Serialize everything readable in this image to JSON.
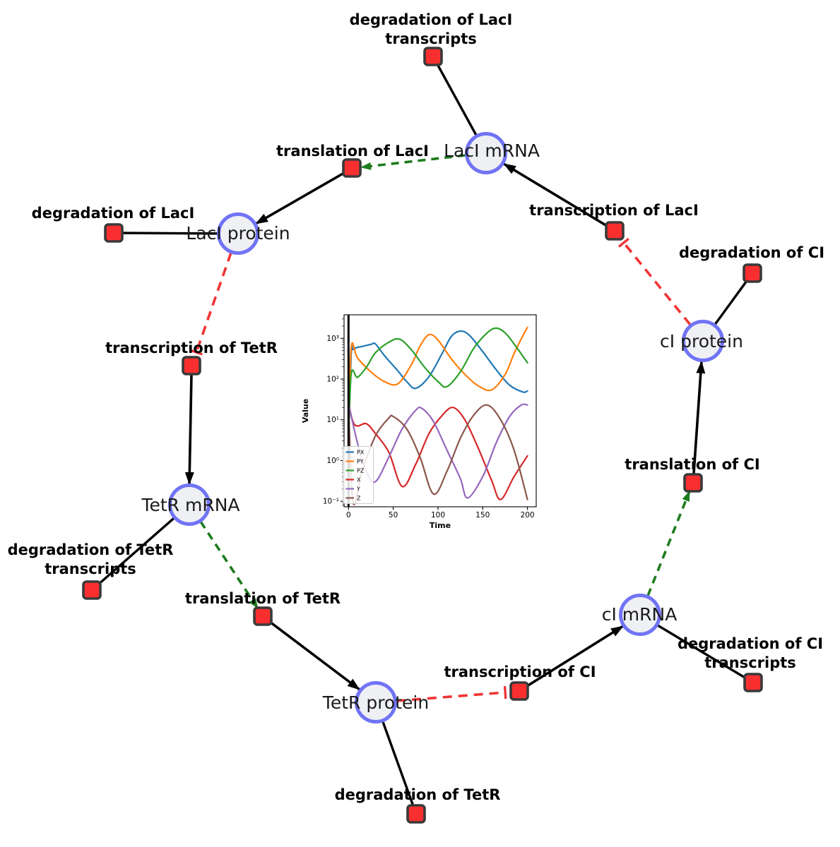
{
  "diagram": {
    "species": [
      {
        "label": "LacI mRNA"
      },
      {
        "label": "LacI protein"
      },
      {
        "label": "TetR mRNA"
      },
      {
        "label": "TetR protein"
      },
      {
        "label": "cI mRNA"
      },
      {
        "label": "cI protein"
      }
    ],
    "reactions": [
      {
        "label": "degradation of LacI transcripts",
        "line1": "degradation of LacI",
        "line2": "transcripts"
      },
      {
        "label": "translation of LacI",
        "line1": "translation of LacI"
      },
      {
        "label": "transcription of LacI",
        "line1": "transcription of LacI"
      },
      {
        "label": "degradation of LacI",
        "line1": "degradation of LacI"
      },
      {
        "label": "degradation of CI",
        "line1": "degradation of CI"
      },
      {
        "label": "transcription of TetR",
        "line1": "transcription of TetR"
      },
      {
        "label": "translation of CI",
        "line1": "translation of CI"
      },
      {
        "label": "degradation of TetR transcripts",
        "line1": "degradation of TetR",
        "line2": "transcripts"
      },
      {
        "label": "translation of TetR",
        "line1": "translation of TetR"
      },
      {
        "label": "degradation of CI transcripts",
        "line1": "degradation of CI",
        "line2": "transcripts"
      },
      {
        "label": "transcription of CI",
        "line1": "transcription of CI"
      },
      {
        "label": "degradation of TetR",
        "line1": "degradation of TetR"
      }
    ],
    "colors": {
      "species_fill": "#eef0f4",
      "species_border": "#7173f5",
      "reaction_fill": "#f92f2f",
      "reaction_border": "#3a3a3a",
      "flow_edge": "#000000",
      "modifier_edge": "#1e7c1e",
      "inhibition_edge": "#f03434"
    }
  },
  "chart_data": {
    "type": "line",
    "title": "",
    "xlabel": "Time",
    "ylabel": "Value",
    "y_scale": "log",
    "grid": false,
    "legend_position": "lower left",
    "xlim": [
      -5,
      210
    ],
    "ylim": [
      0.073,
      3780
    ],
    "x_ticks": [
      0,
      50,
      100,
      150,
      200
    ],
    "x_tick_labels": [
      "0",
      "50",
      "100",
      "150",
      "200"
    ],
    "y_tick_labels": [
      "10⁻¹",
      "10⁰",
      "10¹",
      "10²",
      "10³"
    ],
    "vline_x": 0,
    "series": [
      {
        "name": "PX",
        "color": "#1f77b4",
        "points": [
          [
            0,
            2
          ],
          [
            3,
            420
          ],
          [
            5,
            530
          ],
          [
            10,
            600
          ],
          [
            15,
            630
          ],
          [
            25,
            710
          ],
          [
            30,
            730
          ],
          [
            40,
            380
          ],
          [
            55,
            160
          ],
          [
            65,
            87
          ],
          [
            75,
            59
          ],
          [
            90,
            115
          ],
          [
            105,
            440
          ],
          [
            115,
            1120
          ],
          [
            125,
            1500
          ],
          [
            135,
            1190
          ],
          [
            150,
            470
          ],
          [
            165,
            170
          ],
          [
            180,
            71
          ],
          [
            195,
            48
          ],
          [
            200,
            51
          ]
        ]
      },
      {
        "name": "PY",
        "color": "#ff7f0e",
        "points": [
          [
            0,
            2
          ],
          [
            3,
            570
          ],
          [
            10,
            330
          ],
          [
            25,
            150
          ],
          [
            40,
            87
          ],
          [
            55,
            76
          ],
          [
            70,
            220
          ],
          [
            80,
            650
          ],
          [
            90,
            1230
          ],
          [
            100,
            910
          ],
          [
            115,
            310
          ],
          [
            130,
            130
          ],
          [
            145,
            68
          ],
          [
            160,
            54
          ],
          [
            175,
            130
          ],
          [
            185,
            420
          ],
          [
            195,
            1180
          ],
          [
            200,
            1850
          ]
        ]
      },
      {
        "name": "PZ",
        "color": "#2ca02c",
        "points": [
          [
            0,
            2
          ],
          [
            3,
            130
          ],
          [
            10,
            110
          ],
          [
            20,
            195
          ],
          [
            30,
            440
          ],
          [
            45,
            800
          ],
          [
            57,
            950
          ],
          [
            70,
            530
          ],
          [
            85,
            195
          ],
          [
            100,
            87
          ],
          [
            110,
            65
          ],
          [
            125,
            150
          ],
          [
            140,
            570
          ],
          [
            155,
            1360
          ],
          [
            165,
            1780
          ],
          [
            175,
            1360
          ],
          [
            185,
            730
          ],
          [
            200,
            250
          ]
        ]
      },
      {
        "name": "X",
        "color": "#d62728",
        "points": [
          [
            0,
            25
          ],
          [
            5,
            9
          ],
          [
            10,
            7
          ],
          [
            20,
            8
          ],
          [
            30,
            4.6
          ],
          [
            45,
            1.6
          ],
          [
            60,
            0.23
          ],
          [
            75,
            0.8
          ],
          [
            90,
            4.6
          ],
          [
            105,
            13
          ],
          [
            117,
            20
          ],
          [
            130,
            10
          ],
          [
            145,
            2
          ],
          [
            160,
            0.32
          ],
          [
            170,
            0.11
          ],
          [
            185,
            0.4
          ],
          [
            200,
            1.3
          ]
        ]
      },
      {
        "name": "Y",
        "color": "#9467bd",
        "points": [
          [
            0,
            25
          ],
          [
            10,
            2.7
          ],
          [
            20,
            0.54
          ],
          [
            30,
            0.3
          ],
          [
            45,
            1.2
          ],
          [
            60,
            6
          ],
          [
            75,
            17
          ],
          [
            82,
            19
          ],
          [
            95,
            9
          ],
          [
            110,
            1.8
          ],
          [
            125,
            0.36
          ],
          [
            133,
            0.12
          ],
          [
            150,
            0.4
          ],
          [
            165,
            2.7
          ],
          [
            180,
            12
          ],
          [
            193,
            23
          ],
          [
            200,
            23
          ]
        ]
      },
      {
        "name": "Z",
        "color": "#8c564b",
        "points": [
          [
            0,
            25
          ],
          [
            5,
            0.095
          ],
          [
            15,
            0.54
          ],
          [
            30,
            4
          ],
          [
            45,
            11
          ],
          [
            50,
            12
          ],
          [
            65,
            6
          ],
          [
            80,
            1.2
          ],
          [
            95,
            0.15
          ],
          [
            110,
            0.54
          ],
          [
            125,
            3.5
          ],
          [
            140,
            13
          ],
          [
            155,
            23
          ],
          [
            170,
            10
          ],
          [
            185,
            1.8
          ],
          [
            200,
            0.11
          ]
        ]
      }
    ]
  }
}
